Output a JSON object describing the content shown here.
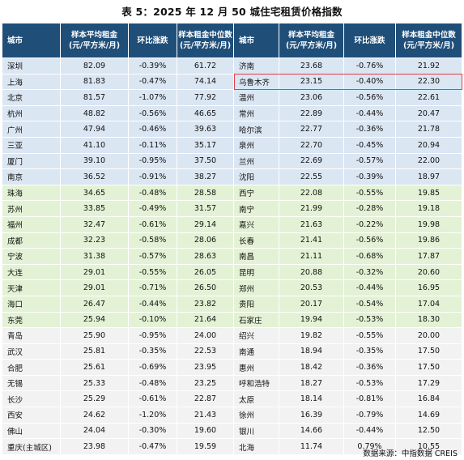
{
  "title": "表 5：2025 年 12 月 50 城住宅租赁价格指数",
  "headers": {
    "city": "城市",
    "avg_rent": "样本平均租金\n(元/平方米/月)",
    "mom": "环比涨跌",
    "median_rent": "样本租金中位数\n(元/平方米/月)"
  },
  "left_rows": [
    {
      "city": "深圳",
      "avg": "82.09",
      "mom": "-0.39%",
      "median": "61.72"
    },
    {
      "city": "上海",
      "avg": "81.83",
      "mom": "-0.47%",
      "median": "74.14"
    },
    {
      "city": "北京",
      "avg": "81.57",
      "mom": "-1.07%",
      "median": "77.92"
    },
    {
      "city": "杭州",
      "avg": "48.82",
      "mom": "-0.56%",
      "median": "46.65"
    },
    {
      "city": "广州",
      "avg": "47.94",
      "mom": "-0.46%",
      "median": "39.63"
    },
    {
      "city": "三亚",
      "avg": "41.10",
      "mom": "-0.11%",
      "median": "35.17"
    },
    {
      "city": "厦门",
      "avg": "39.10",
      "mom": "-0.95%",
      "median": "37.50"
    },
    {
      "city": "南京",
      "avg": "36.52",
      "mom": "-0.91%",
      "median": "38.27"
    },
    {
      "city": "珠海",
      "avg": "34.65",
      "mom": "-0.48%",
      "median": "28.58"
    },
    {
      "city": "苏州",
      "avg": "33.85",
      "mom": "-0.49%",
      "median": "31.57"
    },
    {
      "city": "福州",
      "avg": "32.47",
      "mom": "-0.61%",
      "median": "29.14"
    },
    {
      "city": "成都",
      "avg": "32.23",
      "mom": "-0.58%",
      "median": "28.06"
    },
    {
      "city": "宁波",
      "avg": "31.38",
      "mom": "-0.57%",
      "median": "28.63"
    },
    {
      "city": "大连",
      "avg": "29.01",
      "mom": "-0.55%",
      "median": "26.05"
    },
    {
      "city": "天津",
      "avg": "29.01",
      "mom": "-0.71%",
      "median": "26.50"
    },
    {
      "city": "海口",
      "avg": "26.47",
      "mom": "-0.44%",
      "median": "23.82"
    },
    {
      "city": "东莞",
      "avg": "25.94",
      "mom": "-0.10%",
      "median": "21.64"
    },
    {
      "city": "青岛",
      "avg": "25.90",
      "mom": "-0.95%",
      "median": "24.00"
    },
    {
      "city": "武汉",
      "avg": "25.81",
      "mom": "-0.35%",
      "median": "22.53"
    },
    {
      "city": "合肥",
      "avg": "25.61",
      "mom": "-0.69%",
      "median": "23.95"
    },
    {
      "city": "无锡",
      "avg": "25.33",
      "mom": "-0.48%",
      "median": "23.25"
    },
    {
      "city": "长沙",
      "avg": "25.29",
      "mom": "-0.61%",
      "median": "22.87"
    },
    {
      "city": "西安",
      "avg": "24.62",
      "mom": "-1.20%",
      "median": "21.43"
    },
    {
      "city": "佛山",
      "avg": "24.04",
      "mom": "-0.30%",
      "median": "19.60"
    },
    {
      "city": "重庆(主城区)",
      "avg": "23.98",
      "mom": "-0.47%",
      "median": "19.59"
    }
  ],
  "right_rows": [
    {
      "city": "济南",
      "avg": "23.68",
      "mom": "-0.76%",
      "median": "21.92"
    },
    {
      "city": "乌鲁木齐",
      "avg": "23.15",
      "mom": "-0.40%",
      "median": "22.30"
    },
    {
      "city": "温州",
      "avg": "23.06",
      "mom": "-0.56%",
      "median": "22.61"
    },
    {
      "city": "常州",
      "avg": "22.89",
      "mom": "-0.44%",
      "median": "20.47"
    },
    {
      "city": "哈尔滨",
      "avg": "22.77",
      "mom": "-0.36%",
      "median": "21.78"
    },
    {
      "city": "泉州",
      "avg": "22.70",
      "mom": "-0.45%",
      "median": "20.94"
    },
    {
      "city": "兰州",
      "avg": "22.69",
      "mom": "-0.57%",
      "median": "22.00"
    },
    {
      "city": "沈阳",
      "avg": "22.55",
      "mom": "-0.39%",
      "median": "18.97"
    },
    {
      "city": "西宁",
      "avg": "22.08",
      "mom": "-0.55%",
      "median": "19.85"
    },
    {
      "city": "南宁",
      "avg": "21.99",
      "mom": "-0.28%",
      "median": "19.18"
    },
    {
      "city": "嘉兴",
      "avg": "21.63",
      "mom": "-0.22%",
      "median": "19.98"
    },
    {
      "city": "长春",
      "avg": "21.41",
      "mom": "-0.56%",
      "median": "19.86"
    },
    {
      "city": "南昌",
      "avg": "21.11",
      "mom": "-0.68%",
      "median": "17.87"
    },
    {
      "city": "昆明",
      "avg": "20.88",
      "mom": "-0.32%",
      "median": "20.60"
    },
    {
      "city": "郑州",
      "avg": "20.53",
      "mom": "-0.44%",
      "median": "16.95"
    },
    {
      "city": "贵阳",
      "avg": "20.17",
      "mom": "-0.54%",
      "median": "17.04"
    },
    {
      "city": "石家庄",
      "avg": "19.94",
      "mom": "-0.53%",
      "median": "18.30"
    },
    {
      "city": "绍兴",
      "avg": "19.82",
      "mom": "-0.55%",
      "median": "20.00"
    },
    {
      "city": "南通",
      "avg": "18.94",
      "mom": "-0.35%",
      "median": "17.50"
    },
    {
      "city": "惠州",
      "avg": "18.42",
      "mom": "-0.36%",
      "median": "17.50"
    },
    {
      "city": "呼和浩特",
      "avg": "18.27",
      "mom": "-0.53%",
      "median": "17.29"
    },
    {
      "city": "太原",
      "avg": "18.14",
      "mom": "-0.81%",
      "median": "16.84"
    },
    {
      "city": "徐州",
      "avg": "16.39",
      "mom": "-0.79%",
      "median": "14.69"
    },
    {
      "city": "银川",
      "avg": "14.66",
      "mom": "-0.44%",
      "median": "12.50"
    },
    {
      "city": "北海",
      "avg": "11.74",
      "mom": "0.79%",
      "median": "10.55"
    }
  ],
  "source": "数据来源：中指数据 CREIS",
  "colors": {
    "header_bg": "#1f4e79",
    "band_blue": "#dbe6f3",
    "band_green": "#e3f2d5",
    "band_plain": "#f2f2f2",
    "highlight_border": "#e0414b"
  }
}
